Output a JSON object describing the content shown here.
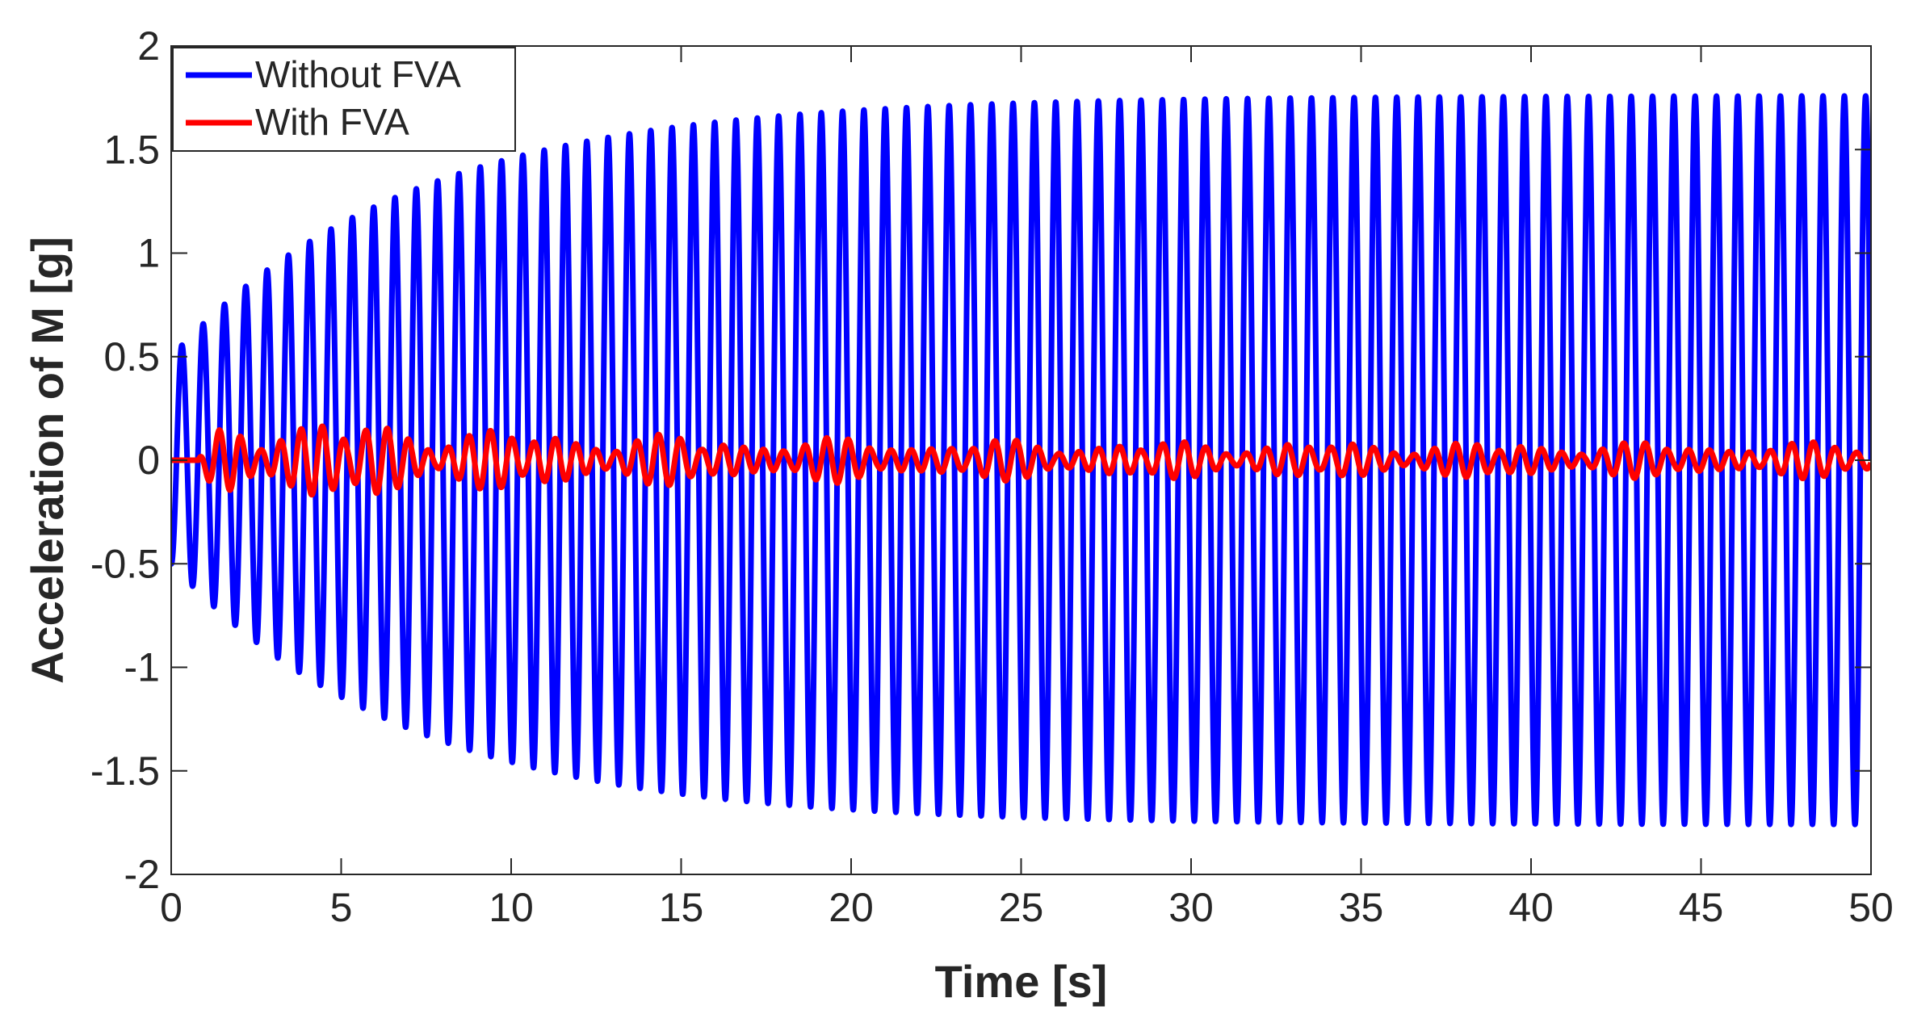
{
  "chart_data": {
    "type": "line",
    "title": "",
    "xlabel": "Time [s]",
    "ylabel": "Acceleration of M [g]",
    "xlim": [
      0,
      50
    ],
    "ylim": [
      -2,
      2
    ],
    "xticks": [
      0,
      5,
      10,
      15,
      20,
      25,
      30,
      35,
      40,
      45,
      50
    ],
    "xtick_labels": [
      "0",
      "5",
      "10",
      "15",
      "20",
      "25",
      "30",
      "35",
      "40",
      "45",
      "50"
    ],
    "yticks": [
      2,
      1.5,
      1,
      0.5,
      0,
      -0.5,
      -1,
      -1.5,
      -2
    ],
    "ytick_labels": [
      "2",
      "1.5",
      "1",
      "0.5",
      "0",
      "-0.5",
      "-1",
      "-1.5",
      "-2"
    ],
    "grid": false,
    "legend_location": "top-left",
    "series": [
      {
        "name": "Without FVA",
        "color": "#0000ff",
        "model": "damped-growth sine",
        "frequency_hz": 1.595,
        "start_value": -0.52,
        "steady_amplitude": 1.76,
        "growth_time_constant_s": 7.0,
        "end_value": 1.55
      },
      {
        "name": "With FVA",
        "color": "#ff0000",
        "model": "beating oscillation",
        "initial_value": 0,
        "peak_value": 0.2,
        "min_value": -0.2,
        "steady_band": 0.05
      }
    ]
  }
}
